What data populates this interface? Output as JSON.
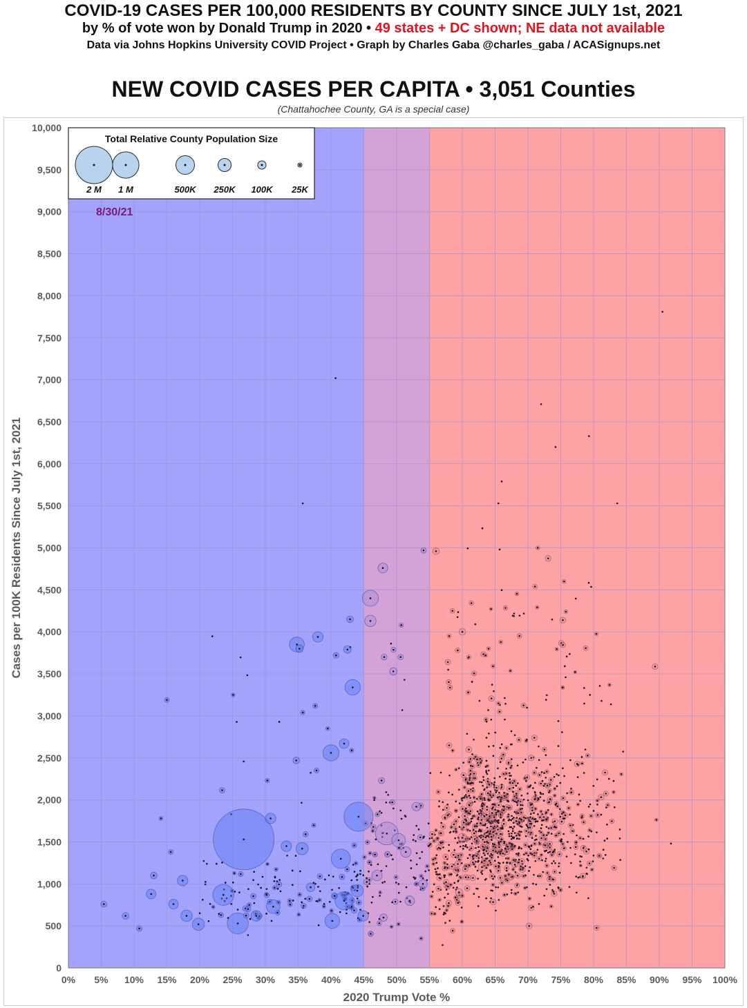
{
  "header": {
    "title": "COVID-19 CASES PER 100,000 RESIDENTS BY COUNTY SINCE JULY 1st, 2021",
    "subtitle_black": "by % of vote won by Donald Trump in 2020 •",
    "subtitle_red": "49 states + DC shown; NE data not available",
    "credits": "Data via Johns Hopkins University COVID Project • Graph by Charles Gaba @charles_gaba / ACASignups.net",
    "chart_title": "NEW COVID CASES PER CAPITA • 3,051 Counties",
    "note": "(Chattahochee County, GA is a special case)"
  },
  "chart_data": {
    "type": "scatter",
    "title": "NEW COVID CASES PER CAPITA • 3,051 Counties",
    "xlabel": "2020 Trump Vote %",
    "ylabel": "Cases per 100K Residents Since July 1st, 2021",
    "xlim": [
      0,
      100
    ],
    "ylim": [
      0,
      10000
    ],
    "x_ticks": [
      0,
      5,
      10,
      15,
      20,
      25,
      30,
      35,
      40,
      45,
      50,
      55,
      60,
      65,
      70,
      75,
      80,
      85,
      90,
      95,
      100
    ],
    "x_tick_labels": [
      "0%",
      "5%",
      "10%",
      "15%",
      "20%",
      "25%",
      "30%",
      "35%",
      "40%",
      "45%",
      "50%",
      "55%",
      "60%",
      "65%",
      "70%",
      "75%",
      "80%",
      "85%",
      "90%",
      "95%",
      "100%"
    ],
    "y_ticks": [
      0,
      500,
      1000,
      1500,
      2000,
      2500,
      3000,
      3500,
      4000,
      4500,
      5000,
      5500,
      6000,
      6500,
      7000,
      7500,
      8000,
      8500,
      9000,
      9500,
      10000
    ],
    "y_tick_labels": [
      "0",
      "500",
      "1,000",
      "1,500",
      "2,000",
      "2,500",
      "3,000",
      "3,500",
      "4,000",
      "4,500",
      "5,000",
      "5,500",
      "6,000",
      "6,500",
      "7,000",
      "7,500",
      "8,000",
      "8,500",
      "9,000",
      "9,500",
      "10,000"
    ],
    "grid": true,
    "date_label": "8/30/21",
    "background_bands": [
      {
        "from": 0,
        "to": 45,
        "color": "#a3a3fb"
      },
      {
        "from": 45,
        "to": 55,
        "color": "#d4a2d6"
      },
      {
        "from": 55,
        "to": 100,
        "color": "#fea3a5"
      }
    ],
    "legend": {
      "title": "Total Relative County Population Size",
      "items": [
        {
          "label": "2 M",
          "population": 2000000
        },
        {
          "label": "1 M",
          "population": 1000000
        },
        {
          "label": "500K",
          "population": 500000
        },
        {
          "label": "250K",
          "population": 250000
        },
        {
          "label": "100K",
          "population": 100000
        },
        {
          "label": "25K",
          "population": 25000
        }
      ]
    },
    "point_count": 3051,
    "bubble_color_blue": "#5b7cf4",
    "bubble_color_purple": "#a98ad8",
    "bubble_color_red": "#d98f99",
    "center_dot_color": "#1a1020",
    "series": [
      {
        "name": "Counties",
        "points": [
          {
            "x": 26.7,
            "y": 1530,
            "pop": 10000000
          },
          {
            "x": 46.0,
            "y": 4400,
            "pop": 700000
          },
          {
            "x": 46.0,
            "y": 4130,
            "pop": 350000
          },
          {
            "x": 47.9,
            "y": 4760,
            "pop": 260000
          },
          {
            "x": 43.3,
            "y": 3340,
            "pop": 650000
          },
          {
            "x": 40.0,
            "y": 2560,
            "pop": 700000
          },
          {
            "x": 42.0,
            "y": 2670,
            "pop": 250000
          },
          {
            "x": 34.8,
            "y": 3850,
            "pop": 600000
          },
          {
            "x": 35.2,
            "y": 3800,
            "pop": 150000
          },
          {
            "x": 38.0,
            "y": 3940,
            "pop": 300000
          },
          {
            "x": 42.5,
            "y": 3790,
            "pop": 150000
          },
          {
            "x": 42.9,
            "y": 4150,
            "pop": 120000
          },
          {
            "x": 44.2,
            "y": 1800,
            "pop": 2300000
          },
          {
            "x": 48.5,
            "y": 1600,
            "pop": 1400000
          },
          {
            "x": 23.6,
            "y": 870,
            "pop": 1200000
          },
          {
            "x": 25.8,
            "y": 530,
            "pop": 1200000
          },
          {
            "x": 41.5,
            "y": 1300,
            "pop": 1000000
          },
          {
            "x": 42.0,
            "y": 800,
            "pop": 900000
          },
          {
            "x": 40.2,
            "y": 560,
            "pop": 600000
          },
          {
            "x": 19.8,
            "y": 520,
            "pop": 400000
          },
          {
            "x": 17.4,
            "y": 1040,
            "pop": 300000
          },
          {
            "x": 16.0,
            "y": 760,
            "pop": 250000
          },
          {
            "x": 18.0,
            "y": 620,
            "pop": 350000
          },
          {
            "x": 12.6,
            "y": 880,
            "pop": 250000
          },
          {
            "x": 13.0,
            "y": 1100,
            "pop": 120000
          },
          {
            "x": 5.4,
            "y": 760,
            "pop": 100000
          },
          {
            "x": 8.7,
            "y": 620,
            "pop": 120000
          },
          {
            "x": 10.8,
            "y": 470,
            "pop": 80000
          },
          {
            "x": 15.0,
            "y": 3190,
            "pop": 60000
          },
          {
            "x": 15.6,
            "y": 1380,
            "pop": 60000
          },
          {
            "x": 14.1,
            "y": 1780,
            "pop": 40000
          },
          {
            "x": 25.1,
            "y": 3250,
            "pop": 35000
          },
          {
            "x": 30.8,
            "y": 1780,
            "pop": 300000
          },
          {
            "x": 33.2,
            "y": 1450,
            "pop": 300000
          },
          {
            "x": 35.6,
            "y": 1420,
            "pop": 400000
          },
          {
            "x": 31.2,
            "y": 730,
            "pop": 500000
          },
          {
            "x": 28.6,
            "y": 620,
            "pop": 300000
          },
          {
            "x": 36.9,
            "y": 960,
            "pop": 200000
          },
          {
            "x": 34.7,
            "y": 2470,
            "pop": 120000
          },
          {
            "x": 37.6,
            "y": 3120,
            "pop": 60000
          },
          {
            "x": 35.7,
            "y": 3040,
            "pop": 50000
          },
          {
            "x": 30.3,
            "y": 2230,
            "pop": 50000
          },
          {
            "x": 39.5,
            "y": 2850,
            "pop": 40000
          },
          {
            "x": 37.8,
            "y": 2350,
            "pop": 70000
          },
          {
            "x": 44.9,
            "y": 620,
            "pop": 300000
          },
          {
            "x": 44.0,
            "y": 920,
            "pop": 400000
          },
          {
            "x": 50.3,
            "y": 1520,
            "pop": 500000
          },
          {
            "x": 51.4,
            "y": 1380,
            "pop": 300000
          },
          {
            "x": 53.0,
            "y": 1920,
            "pop": 200000
          },
          {
            "x": 49.5,
            "y": 3530,
            "pop": 150000
          },
          {
            "x": 48.1,
            "y": 3700,
            "pop": 90000
          },
          {
            "x": 50.6,
            "y": 3700,
            "pop": 80000
          },
          {
            "x": 47.7,
            "y": 2230,
            "pop": 100000
          },
          {
            "x": 50.7,
            "y": 4080,
            "pop": 50000
          },
          {
            "x": 47.0,
            "y": 1100,
            "pop": 300000
          },
          {
            "x": 52.0,
            "y": 800,
            "pop": 250000
          },
          {
            "x": 48.0,
            "y": 600,
            "pop": 150000
          },
          {
            "x": 54.0,
            "y": 1000,
            "pop": 200000
          },
          {
            "x": 56.0,
            "y": 4960,
            "pop": 120000
          },
          {
            "x": 54.1,
            "y": 4970,
            "pop": 80000
          },
          {
            "x": 60.0,
            "y": 4000,
            "pop": 120000
          },
          {
            "x": 57.8,
            "y": 3640,
            "pop": 80000
          },
          {
            "x": 59.3,
            "y": 3780,
            "pop": 60000
          },
          {
            "x": 61.0,
            "y": 3700,
            "pop": 50000
          },
          {
            "x": 58.5,
            "y": 4250,
            "pop": 60000
          },
          {
            "x": 64.0,
            "y": 3800,
            "pop": 40000
          },
          {
            "x": 58.0,
            "y": 3950,
            "pop": 40000
          },
          {
            "x": 60.9,
            "y": 3280,
            "pop": 50000
          },
          {
            "x": 65.5,
            "y": 3150,
            "pop": 40000
          },
          {
            "x": 61.0,
            "y": 2600,
            "pop": 100000
          },
          {
            "x": 58.0,
            "y": 2650,
            "pop": 80000
          },
          {
            "x": 60.0,
            "y": 1550,
            "pop": 200000
          },
          {
            "x": 63.0,
            "y": 1200,
            "pop": 150000
          },
          {
            "x": 59.5,
            "y": 900,
            "pop": 150000
          },
          {
            "x": 68.0,
            "y": 1230,
            "pop": 100000
          },
          {
            "x": 70.5,
            "y": 2500,
            "pop": 90000
          },
          {
            "x": 72.5,
            "y": 2600,
            "pop": 60000
          },
          {
            "x": 75.5,
            "y": 4600,
            "pop": 40000
          },
          {
            "x": 74.2,
            "y": 6200,
            "pop": 15000
          },
          {
            "x": 71.5,
            "y": 5000,
            "pop": 40000
          },
          {
            "x": 83.6,
            "y": 5530,
            "pop": 20000
          },
          {
            "x": 79.3,
            "y": 6330,
            "pop": 15000
          },
          {
            "x": 72.0,
            "y": 6710,
            "pop": 8000
          },
          {
            "x": 66.0,
            "y": 5790,
            "pop": 12000
          },
          {
            "x": 65.5,
            "y": 5530,
            "pop": 10000
          },
          {
            "x": 40.7,
            "y": 7020,
            "pop": 3000
          },
          {
            "x": 90.5,
            "y": 7810,
            "pop": 3000
          },
          {
            "x": 35.7,
            "y": 5530,
            "pop": 3000
          }
        ]
      }
    ]
  }
}
